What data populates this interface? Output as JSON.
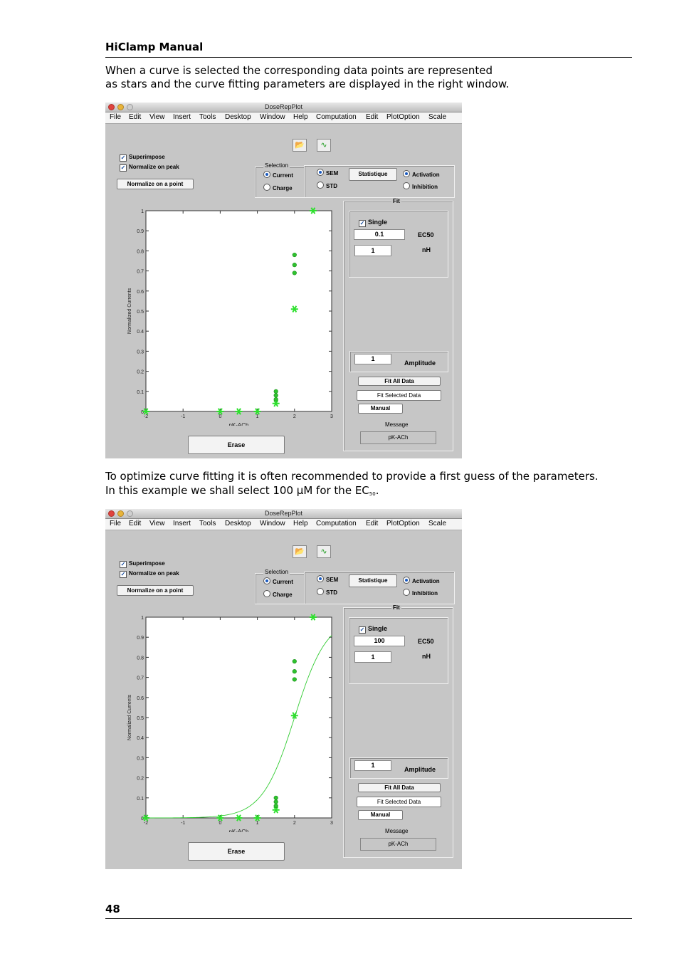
{
  "header": {
    "title": "HiClamp Manual"
  },
  "paragraphs": {
    "p1_line1": "When a curve is selected the corresponding data points are represented",
    "p1_line2": "as stars and the curve fitting parameters are displayed in the right window.",
    "p2_line1": "To optimize curve fitting it is often recommended to provide a first guess of the parameters.",
    "p2_line2_pre": "In this example we shall select 100 μM for the EC",
    "p2_line2_sub": "50",
    "p2_line2_post": "."
  },
  "footer": {
    "page_number": "48"
  },
  "app": {
    "window_title": "DoseRepPlot",
    "menu": [
      "File",
      "Edit",
      "View",
      "Insert",
      "Tools",
      "Desktop",
      "Window",
      "Help",
      "Computation",
      "Edit",
      "PlotOption",
      "Scale"
    ],
    "superimpose_label": "Superimpose",
    "normalize_peak_label": "Normalize on peak",
    "normalize_point_button": "Normalize on a point",
    "selection_group_label": "Selection",
    "current_label": "Current",
    "charge_label": "Charge",
    "sem_label": "SEM",
    "std_label": "STD",
    "statistique_button": "Statistique",
    "activation_label": "Activation",
    "inhibition_label": "Inhibition",
    "fit_group_label": "Fit",
    "single_label": "Single",
    "ec50_label": "EC50",
    "nh_label": "nH",
    "amplitude_label": "Amplitude",
    "fit_all_button": "Fit All Data",
    "fit_selected_button": "Fit Selected Data",
    "manual_button": "Manual",
    "message_label": "Message",
    "message_value": "pK-ACh",
    "erase_button": "Erase",
    "ylabel": "Normalized Currents",
    "xlabel": "pK-ACh",
    "xticks": [
      "-2",
      "-1",
      "0",
      "1",
      "2",
      "3"
    ],
    "yticks": [
      "0",
      "0.1",
      "0.2",
      "0.3",
      "0.4",
      "0.5",
      "0.6",
      "0.7",
      "0.8",
      "0.9",
      "1"
    ]
  },
  "screenshot1": {
    "ec50_value": "0.1",
    "nh_value": "1",
    "amplitude_value": "1"
  },
  "screenshot2": {
    "ec50_value": "100",
    "nh_value": "1",
    "amplitude_value": "1"
  },
  "chart_data": [
    {
      "type": "scatter",
      "xlabel": "pK-ACh",
      "ylabel": "Normalized Currents",
      "xlim": [
        -2,
        3
      ],
      "ylim": [
        0,
        1
      ],
      "series": [
        {
          "marker": "star",
          "x": [
            -2,
            0,
            0.5,
            1,
            1.5,
            2,
            2.5
          ],
          "y": [
            0,
            0,
            0,
            0,
            0.04,
            0.51,
            1
          ]
        },
        {
          "marker": "dot",
          "x": [
            1.5,
            1.5,
            1.5,
            2,
            2,
            2
          ],
          "y": [
            0.1,
            0.08,
            0.06,
            0.78,
            0.73,
            0.69
          ]
        }
      ]
    },
    {
      "type": "scatter",
      "xlabel": "pK-ACh",
      "ylabel": "Normalized Currents",
      "xlim": [
        -2,
        3
      ],
      "ylim": [
        0,
        1
      ],
      "series": [
        {
          "marker": "star",
          "x": [
            -2,
            0,
            0.5,
            1,
            1.5,
            2,
            2.5
          ],
          "y": [
            0,
            0,
            0,
            0,
            0.04,
            0.51,
            1
          ]
        },
        {
          "marker": "dot",
          "x": [
            1.5,
            1.5,
            1.5,
            2,
            2,
            2
          ],
          "y": [
            0.1,
            0.08,
            0.06,
            0.78,
            0.73,
            0.69
          ]
        },
        {
          "marker": "line",
          "fit": "hill",
          "ec50_pk": 2,
          "nh": 1
        }
      ]
    }
  ]
}
